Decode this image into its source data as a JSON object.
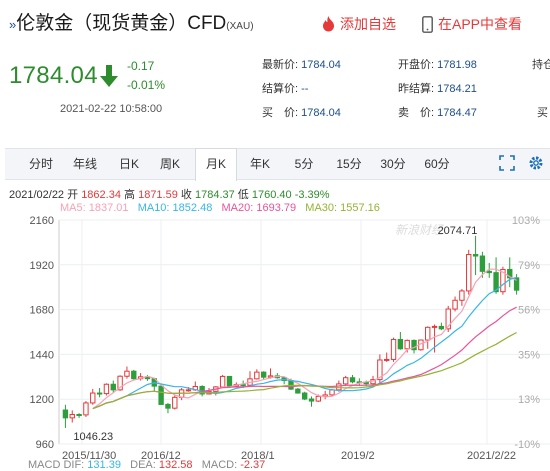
{
  "header": {
    "title_prefix": "»",
    "title": "伦敦金（现货黄金）CFD",
    "title_suffix": "(XAU)",
    "add_watch": "添加自选",
    "open_app": "在APP中查看"
  },
  "quote": {
    "price": "1784.04",
    "change": "-0.17",
    "change_pct": "-0.01%",
    "datetime": "2021-02-22 10:58:00",
    "fields": [
      {
        "label": "最新价:",
        "value": "1784.04"
      },
      {
        "label": "结算价:",
        "value": "--"
      },
      {
        "label": "买　价:",
        "value": "1784.04"
      },
      {
        "label": "开盘价:",
        "value": "1781.98"
      },
      {
        "label": "昨结算:",
        "value": "1784.21"
      },
      {
        "label": "卖　价:",
        "value": "1784.47"
      },
      {
        "label": "持仓",
        "value": ""
      },
      {
        "label": "买",
        "value": ""
      }
    ]
  },
  "tabs": [
    "分时",
    "年线",
    "日K",
    "周K",
    "月K",
    "年K",
    "5分",
    "15分",
    "30分",
    "60分"
  ],
  "active_tab": "月K",
  "ohlc": {
    "date": "2021/02/22",
    "open_label": "开",
    "open": "1862.34",
    "high_label": "高",
    "high": "1871.59",
    "close_label": "收",
    "close": "1784.37",
    "low_label": "低",
    "low": "1760.40",
    "pct": "-3.39%"
  },
  "ma": [
    {
      "name": "MA5:",
      "value": "1837.01",
      "color": "#f7a1b5"
    },
    {
      "name": "MA10:",
      "value": "1852.48",
      "color": "#38b6e8"
    },
    {
      "name": "MA20:",
      "value": "1693.79",
      "color": "#e8549a"
    },
    {
      "name": "MA30:",
      "value": "1557.16",
      "color": "#93b431"
    }
  ],
  "macd": {
    "dif_label": "MACD  DIF:",
    "dif": "131.39",
    "dea_label": "DEA:",
    "dea": "132.58",
    "m_label": "MACD:",
    "m": "-2.37"
  },
  "colors": {
    "up": "#e5393a",
    "down": "#2e9e3c",
    "ma5": "#f7a1b5",
    "ma10": "#38b6e8",
    "ma20": "#e8549a",
    "ma30": "#93b431",
    "link": "#1d4f8c",
    "accent": "#e5393a"
  },
  "chart_data": {
    "type": "candlestick",
    "y_ticks": [
      "2160",
      "1920",
      "1680",
      "1440",
      "1200",
      "960"
    ],
    "pct_ticks": [
      "103%",
      "79%",
      "56%",
      "35%",
      "13%",
      "-10%"
    ],
    "x_ticks": [
      "2015/11/30",
      "2016/12",
      "2018/1",
      "2019/2",
      "2021/2/22"
    ],
    "ylim": [
      960,
      2160
    ],
    "max_label": "2074.71",
    "min_label": "1046.23",
    "watermark": "新浪财经",
    "candles": [
      [
        1142,
        1100,
        1170,
        1046
      ],
      [
        1100,
        1118,
        1140,
        1075
      ],
      [
        1118,
        1116,
        1125,
        1100
      ],
      [
        1116,
        1180,
        1190,
        1105
      ],
      [
        1180,
        1233,
        1255,
        1170
      ],
      [
        1233,
        1230,
        1260,
        1210
      ],
      [
        1230,
        1280,
        1285,
        1220
      ],
      [
        1280,
        1250,
        1300,
        1235
      ],
      [
        1250,
        1323,
        1328,
        1245
      ],
      [
        1323,
        1350,
        1375,
        1310
      ],
      [
        1350,
        1310,
        1357,
        1300
      ],
      [
        1310,
        1320,
        1340,
        1300
      ],
      [
        1320,
        1310,
        1330,
        1298
      ],
      [
        1310,
        1270,
        1315,
        1240
      ],
      [
        1270,
        1172,
        1280,
        1170
      ],
      [
        1172,
        1152,
        1180,
        1125
      ],
      [
        1152,
        1210,
        1220,
        1145
      ],
      [
        1210,
        1250,
        1260,
        1195
      ],
      [
        1250,
        1250,
        1265,
        1240
      ],
      [
        1250,
        1268,
        1295,
        1245
      ],
      [
        1268,
        1228,
        1275,
        1215
      ],
      [
        1228,
        1242,
        1260,
        1225
      ],
      [
        1242,
        1266,
        1270,
        1220
      ],
      [
        1266,
        1322,
        1330,
        1265
      ],
      [
        1322,
        1270,
        1310,
        1260
      ],
      [
        1270,
        1278,
        1290,
        1265
      ],
      [
        1278,
        1275,
        1300,
        1260
      ],
      [
        1275,
        1309,
        1350,
        1270
      ],
      [
        1309,
        1345,
        1360,
        1305
      ],
      [
        1345,
        1318,
        1350,
        1305
      ],
      [
        1318,
        1325,
        1365,
        1310
      ],
      [
        1325,
        1315,
        1340,
        1310
      ],
      [
        1315,
        1300,
        1320,
        1280
      ],
      [
        1300,
        1254,
        1310,
        1250
      ],
      [
        1254,
        1233,
        1260,
        1230
      ],
      [
        1233,
        1201,
        1240,
        1195
      ],
      [
        1201,
        1190,
        1215,
        1160
      ],
      [
        1190,
        1215,
        1225,
        1185
      ],
      [
        1215,
        1223,
        1245,
        1200
      ],
      [
        1223,
        1250,
        1255,
        1218
      ],
      [
        1250,
        1282,
        1300,
        1240
      ],
      [
        1282,
        1315,
        1325,
        1270
      ],
      [
        1315,
        1293,
        1330,
        1285
      ],
      [
        1293,
        1292,
        1312,
        1270
      ],
      [
        1292,
        1283,
        1300,
        1270
      ],
      [
        1283,
        1305,
        1325,
        1270
      ],
      [
        1305,
        1410,
        1440,
        1285
      ],
      [
        1410,
        1413,
        1450,
        1400
      ],
      [
        1413,
        1520,
        1530,
        1400
      ],
      [
        1520,
        1470,
        1560,
        1465
      ],
      [
        1470,
        1515,
        1520,
        1450
      ],
      [
        1515,
        1465,
        1520,
        1445
      ],
      [
        1465,
        1517,
        1520,
        1460
      ],
      [
        1517,
        1585,
        1590,
        1470
      ],
      [
        1585,
        1590,
        1600,
        1450
      ],
      [
        1590,
        1577,
        1610,
        1570
      ],
      [
        1577,
        1683,
        1700,
        1560
      ],
      [
        1683,
        1730,
        1750,
        1670
      ],
      [
        1730,
        1780,
        1790,
        1700
      ],
      [
        1780,
        1975,
        2000,
        1760
      ],
      [
        1975,
        1967,
        2075,
        1865
      ],
      [
        1967,
        1885,
        1990,
        1850
      ],
      [
        1885,
        1878,
        1930,
        1850
      ],
      [
        1878,
        1776,
        1960,
        1765
      ],
      [
        1776,
        1895,
        1910,
        1760
      ],
      [
        1895,
        1850,
        1960,
        1800
      ],
      [
        1850,
        1784,
        1870,
        1760
      ]
    ]
  }
}
